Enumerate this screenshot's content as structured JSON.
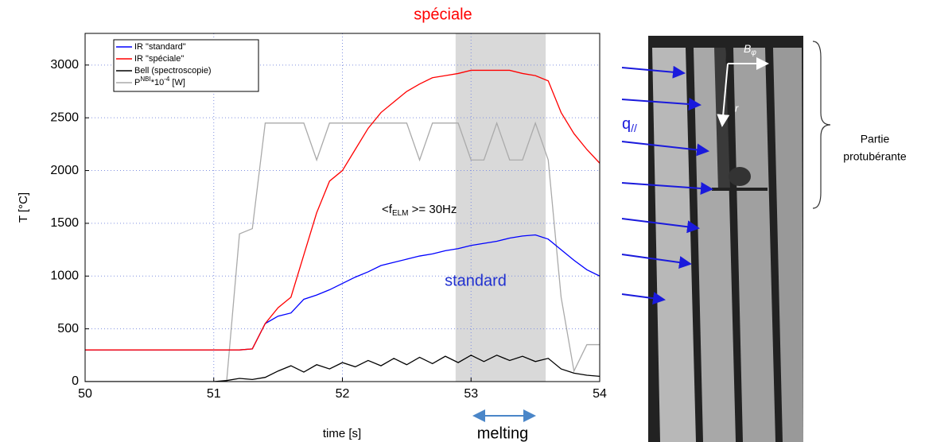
{
  "chart_data": {
    "type": "line",
    "xlabel": "time [s]",
    "ylabel": "T [°C]",
    "x": [
      50.0,
      50.1,
      50.2,
      50.3,
      50.4,
      50.5,
      50.6,
      50.7,
      50.8,
      50.9,
      51.0,
      51.1,
      51.2,
      51.3,
      51.4,
      51.5,
      51.6,
      51.7,
      51.8,
      51.9,
      52.0,
      52.1,
      52.2,
      52.3,
      52.4,
      52.5,
      52.6,
      52.7,
      52.8,
      52.9,
      53.0,
      53.1,
      53.2,
      53.3,
      53.4,
      53.5,
      53.6,
      53.7,
      53.8,
      53.9,
      54.0
    ],
    "series": [
      {
        "name": "IR \"standard\"",
        "color": "#0000ff",
        "values": [
          300,
          300,
          300,
          300,
          300,
          300,
          300,
          300,
          300,
          300,
          300,
          300,
          300,
          310,
          550,
          620,
          650,
          780,
          820,
          870,
          930,
          990,
          1040,
          1100,
          1130,
          1160,
          1190,
          1210,
          1240,
          1260,
          1290,
          1310,
          1330,
          1360,
          1380,
          1390,
          1350,
          1250,
          1150,
          1060,
          1000
        ]
      },
      {
        "name": "IR \"spéciale\"",
        "color": "#ff0000",
        "values": [
          300,
          300,
          300,
          300,
          300,
          300,
          300,
          300,
          300,
          300,
          300,
          300,
          300,
          310,
          550,
          700,
          800,
          1200,
          1600,
          1900,
          2000,
          2200,
          2400,
          2550,
          2650,
          2750,
          2820,
          2880,
          2900,
          2920,
          2950,
          2950,
          2950,
          2950,
          2920,
          2900,
          2850,
          2550,
          2350,
          2200,
          2070
        ]
      },
      {
        "name": "Bell (spectroscopie)",
        "color": "#000000",
        "values": [
          0,
          0,
          0,
          0,
          0,
          0,
          0,
          0,
          0,
          0,
          0,
          10,
          30,
          20,
          40,
          100,
          150,
          90,
          160,
          120,
          180,
          140,
          200,
          150,
          220,
          160,
          230,
          170,
          240,
          180,
          250,
          190,
          250,
          200,
          240,
          190,
          220,
          120,
          80,
          60,
          50
        ]
      },
      {
        "name_parts": [
          "P",
          "NBI",
          "*10",
          "-4",
          " [W]"
        ],
        "color": "#aaaaaa",
        "values": [
          0,
          0,
          0,
          0,
          0,
          0,
          0,
          0,
          0,
          0,
          0,
          0,
          1400,
          1450,
          2450,
          2450,
          2450,
          2450,
          2100,
          2450,
          2450,
          2450,
          2450,
          2450,
          2450,
          2450,
          2100,
          2450,
          2450,
          2450,
          2100,
          2100,
          2450,
          2100,
          2100,
          2450,
          2100,
          800,
          100,
          350,
          350
        ]
      }
    ],
    "xlim": [
      50,
      54
    ],
    "xticks": [
      50,
      51,
      52,
      53,
      54
    ],
    "ylim": [
      0,
      3300
    ],
    "yticks": [
      0,
      500,
      1000,
      1500,
      2000,
      2500,
      3000
    ],
    "grid": true,
    "legend": "upper left",
    "shaded_region": [
      52.88,
      53.58
    ],
    "shaded_color": "#d9d9d9",
    "annotations": {
      "speciale": "spéciale",
      "standard": "standard",
      "felm_parts": [
        "<f",
        "ELM",
        " >= 30Hz"
      ],
      "melting": "melting"
    }
  },
  "image": {
    "q_parts": [
      "q",
      "//"
    ],
    "b_parts": [
      "B",
      "φ"
    ],
    "r": "r",
    "part_lines": [
      "Partie",
      "protubérante"
    ]
  }
}
